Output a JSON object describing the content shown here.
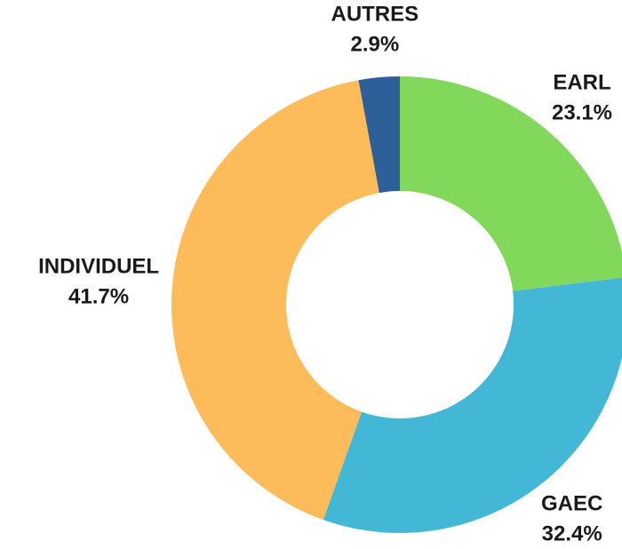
{
  "chart_data": {
    "type": "donut",
    "categories": [
      "EARL",
      "GAEC",
      "INDIVIDUEL",
      "AUTRES"
    ],
    "values": [
      23.1,
      32.4,
      41.7,
      2.9
    ],
    "value_labels": [
      "23.1%",
      "32.4%",
      "41.7%",
      "2.9%"
    ],
    "colors": [
      "#82d85a",
      "#43b8d6",
      "#fdbb5a",
      "#2d6099"
    ]
  }
}
